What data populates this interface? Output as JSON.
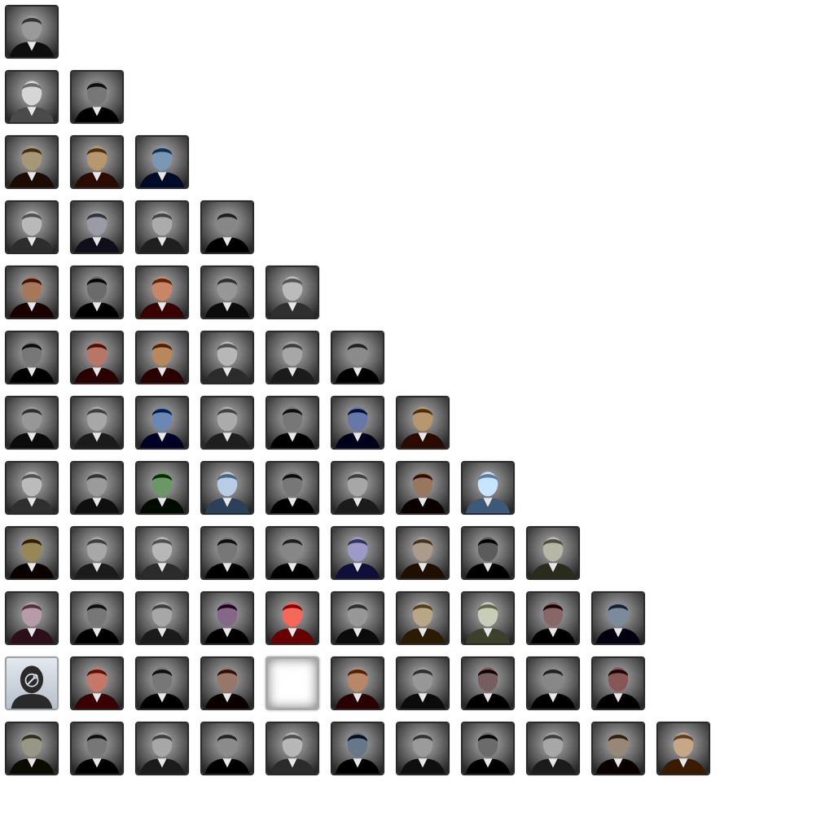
{
  "portrait_rows": [
    [
      "#6d6d6d"
    ],
    [
      "#a9a9a9",
      "#4a4a4a"
    ],
    [
      "#7a6a4a",
      "#8a6a40",
      "#4e6a86"
    ],
    [
      "#8c8c8c",
      "#6e6e78",
      "#7e7e7e",
      "#5a5a5a"
    ],
    [
      "#7a4a2c",
      "#3e3e3e",
      "#9a5a3a",
      "#6a6a6a",
      "#8e8e8e"
    ],
    [
      "#4a4a4a",
      "#8a4a3a",
      "#8a5a30",
      "#8a8a8a",
      "#7a7a7a",
      "#5e5e5e"
    ],
    [
      "#6a6a6a",
      "#7a7a7a",
      "#3e5a86",
      "#7e7e7e",
      "#4a4a4a",
      "#3a4a7a",
      "#8a6a40"
    ],
    [
      "#8e8e8e",
      "#6e6e6e",
      "#3e6a3a",
      "#8aa0b8",
      "#4a4a4a",
      "#7a7a7a",
      "#6a4a30",
      "#9ab8d8"
    ],
    [
      "#6a5a2a",
      "#7a7a7a",
      "#8a8a8a",
      "#4a4a4a",
      "#5a5a5a",
      "#6e6e9a",
      "#7e6e5e",
      "#2e2e2e",
      "#8a8a7a"
    ],
    [
      "#8a6e7a",
      "#4a4a4a",
      "#7a7a7a",
      "#5a3a5a",
      "#c83a2a",
      "#6a6a6a",
      "#8a7a5a",
      "#9aa08a",
      "#5a3a3a",
      "#4e5e6e"
    ],
    [
      "#6e7a8a",
      "#9a4a3a",
      "#4a4a4a",
      "#6a4a3a",
      "#ffffff",
      "#8a5a3a",
      "#6a6a6a",
      "#4a3030",
      "#5a5a5a",
      "#5a2a2a"
    ],
    [
      "#6a6a5a",
      "#4a4a4a",
      "#7a7a7a",
      "#5e5e5e",
      "#8a8a8a",
      "#3a4a5a",
      "#6e6e6e",
      "#3e3e3e",
      "#7a7a7a",
      "#6a5a4a",
      "#9a7a5a"
    ]
  ],
  "special_tiles": {
    "empty_slot": "10-4",
    "unknown_leader": "10-0"
  },
  "icons": {
    "unknown_leader": "wrench-silhouette-icon"
  }
}
